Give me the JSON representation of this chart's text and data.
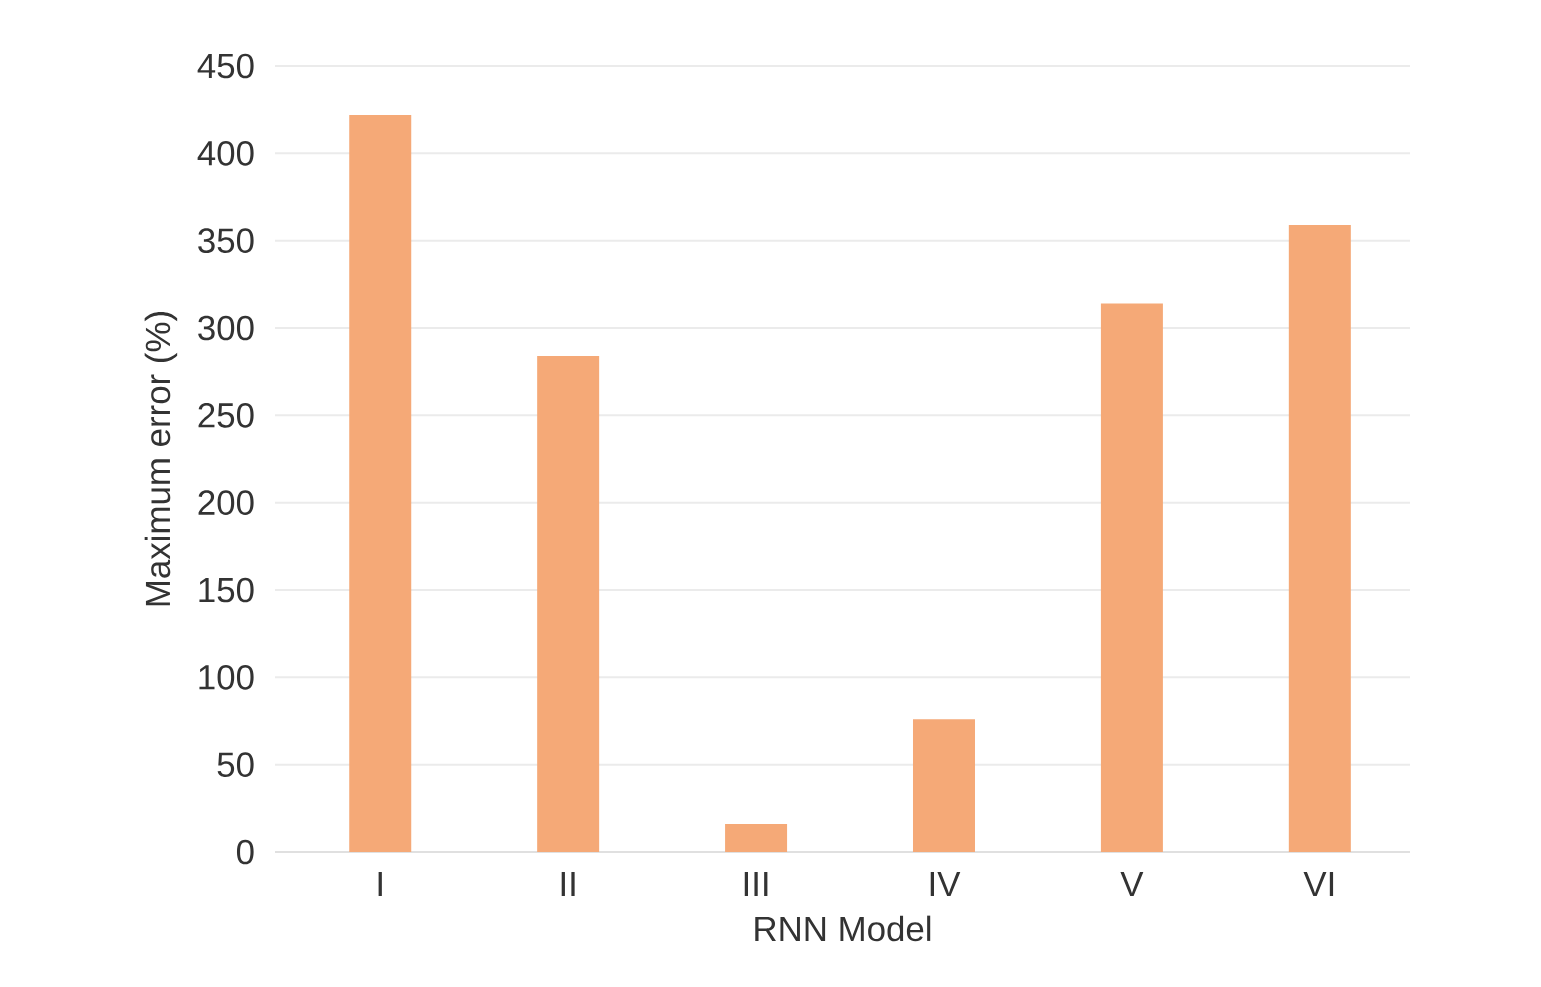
{
  "chart_data": {
    "type": "bar",
    "xlabel": "RNN Model",
    "ylabel": "Maximum error (%)",
    "categories": [
      "I",
      "II",
      "III",
      "IV",
      "V",
      "VI"
    ],
    "values": [
      422,
      284,
      16,
      76,
      314,
      359
    ],
    "color": "#f5a977",
    "ylim": [
      0,
      450
    ],
    "yticks": [
      0,
      50,
      100,
      150,
      200,
      250,
      300,
      350,
      400,
      450
    ],
    "grid": "y"
  }
}
